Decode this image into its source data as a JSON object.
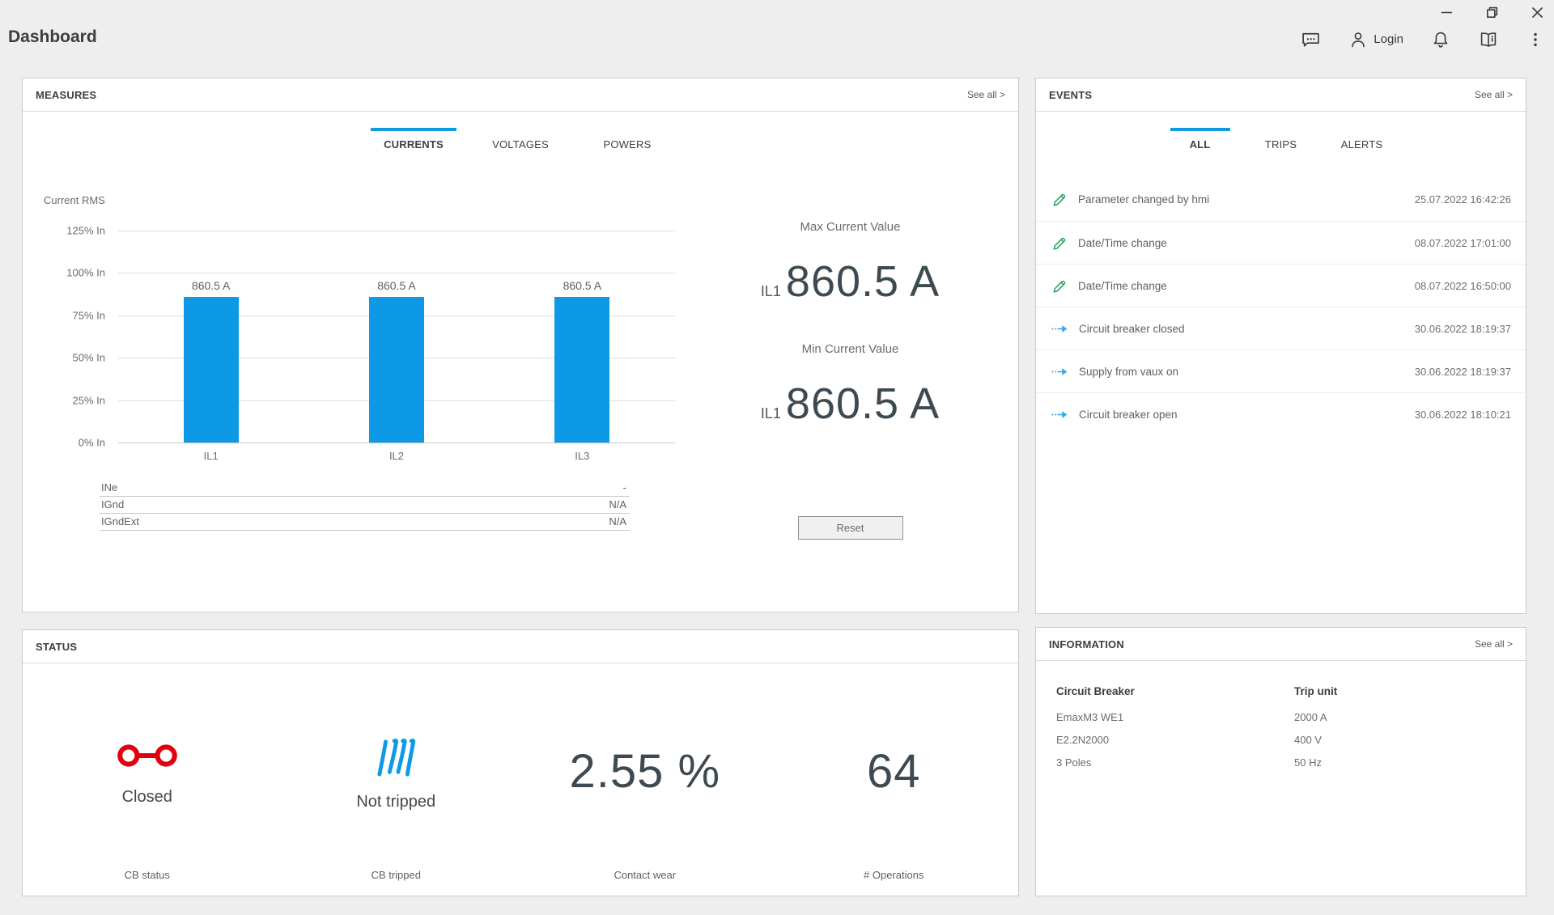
{
  "window": {
    "title": "Dashboard",
    "controls": {
      "minimize": "minimize",
      "restore": "restore",
      "close": "close"
    }
  },
  "topbar": {
    "login_label": "Login"
  },
  "colors": {
    "accent-blue": "#0f9ae2",
    "bar-blue": "#0d99e6",
    "abb-red": "#e2000f",
    "green": "#1e9e57",
    "arrow-blue": "#41a7e3",
    "big-num": "#3d4a52"
  },
  "measures": {
    "title": "MEASURES",
    "see_all": "See all >",
    "tabs": [
      {
        "label": "CURRENTS",
        "active": true
      },
      {
        "label": "VOLTAGES",
        "active": false
      },
      {
        "label": "POWERS",
        "active": false
      }
    ],
    "table": {
      "rows": [
        {
          "label": "INe",
          "value": "-"
        },
        {
          "label": "IGnd",
          "value": "N/A"
        },
        {
          "label": "IGndExt",
          "value": "N/A"
        }
      ]
    },
    "max": {
      "title": "Max Current Value",
      "phase": "IL1",
      "value": "860.5 A"
    },
    "min": {
      "title": "Min Current Value",
      "phase": "IL1",
      "value": "860.5 A"
    },
    "reset_label": "Reset"
  },
  "chart_data": {
    "type": "bar",
    "title": "Current RMS",
    "categories": [
      "IL1",
      "IL2",
      "IL3"
    ],
    "values": [
      860.5,
      860.5,
      860.5
    ],
    "unit": "A",
    "value_labels": [
      "860.5 A",
      "860.5 A",
      "860.5 A"
    ],
    "y_ticks": [
      "125% In",
      "100% In",
      "75% In",
      "50% In",
      "25% In",
      "0% In"
    ],
    "ylim_percent_in": [
      0,
      125
    ],
    "bar_percent_in": [
      86,
      86,
      86
    ],
    "bar_color": "#0d99e6",
    "grid": true,
    "xlabel": "",
    "ylabel": "% In"
  },
  "events": {
    "title": "EVENTS",
    "see_all": "See all >",
    "tabs": [
      {
        "label": "ALL",
        "active": true
      },
      {
        "label": "TRIPS",
        "active": false
      },
      {
        "label": "ALERTS",
        "active": false
      }
    ],
    "items": [
      {
        "icon": "pencil-icon",
        "label": "Parameter changed by hmi",
        "timestamp": "25.07.2022 16:42:26"
      },
      {
        "icon": "pencil-icon",
        "label": "Date/Time change",
        "timestamp": "08.07.2022 17:01:00"
      },
      {
        "icon": "pencil-icon",
        "label": "Date/Time change",
        "timestamp": "08.07.2022 16:50:00"
      },
      {
        "icon": "event-arrow-icon",
        "label": "Circuit breaker closed",
        "timestamp": "30.06.2022 18:19:37"
      },
      {
        "icon": "event-arrow-icon",
        "label": "Supply from vaux on",
        "timestamp": "30.06.2022 18:19:37"
      },
      {
        "icon": "event-arrow-icon",
        "label": "Circuit breaker open",
        "timestamp": "30.06.2022 18:10:21"
      }
    ]
  },
  "status": {
    "title": "STATUS",
    "items": [
      {
        "icon": "breaker-closed-icon",
        "value": "Closed",
        "caption": "CB status"
      },
      {
        "icon": "not-tripped-icon",
        "value": "Not tripped",
        "caption": "CB tripped"
      },
      {
        "value": "2.55 %",
        "caption": "Contact wear"
      },
      {
        "value": "64",
        "caption": "# Operations"
      }
    ]
  },
  "information": {
    "title": "INFORMATION",
    "see_all": "See all >",
    "columns": [
      {
        "header": "Circuit Breaker",
        "rows": [
          "EmaxM3 WE1",
          "E2.2N2000",
          "3 Poles"
        ]
      },
      {
        "header": "Trip unit",
        "rows": [
          "2000 A",
          "400 V",
          "50 Hz"
        ]
      }
    ]
  }
}
